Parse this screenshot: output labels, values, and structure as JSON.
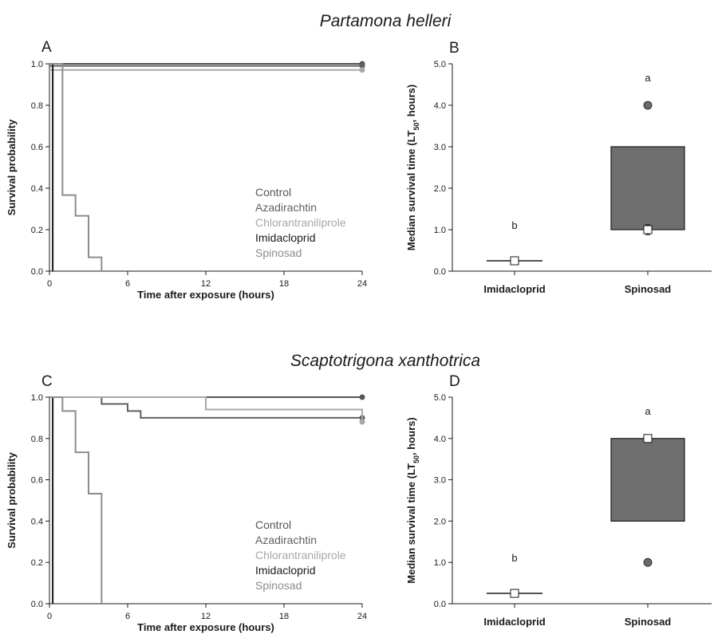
{
  "figure": {
    "colors": {
      "axis": "#1a1a1a",
      "control": "#555555",
      "azadirachtin": "#606060",
      "chlorantraniliprole": "#a8a8a8",
      "imidacloprid": "#1a1a1a",
      "spinosad": "#8c8c8c",
      "box_fill": "#6e6e6e"
    },
    "species_titles": [
      "Partamona helleri",
      "Scaptotrigona xanthotrica"
    ]
  },
  "chart_data": [
    {
      "panel": "A",
      "type": "line",
      "step": true,
      "title": "Partamona helleri",
      "xlabel": "Time after exposure (hours)",
      "ylabel": "Survival probability",
      "xlim": [
        0,
        24
      ],
      "ylim": [
        0,
        1
      ],
      "xticks": [
        "0",
        "6",
        "12",
        "18",
        "24"
      ],
      "yticks": [
        "0.0",
        "0.2",
        "0.4",
        "0.6",
        "0.8",
        "1.0"
      ],
      "legend": [
        "Control",
        "Azadirachtin",
        "Chlorantraniliprole",
        "Imidacloprid",
        "Spinosad"
      ],
      "legend_position": "right-center",
      "series": [
        {
          "name": "Control",
          "color": "#555555",
          "x": [
            0,
            24
          ],
          "y": [
            1.0,
            1.0
          ],
          "end_marker": true
        },
        {
          "name": "Azadirachtin",
          "color": "#606060",
          "x": [
            0,
            24
          ],
          "y": [
            0.99,
            0.99
          ],
          "end_marker": true
        },
        {
          "name": "Chlorantraniliprole",
          "color": "#a8a8a8",
          "x": [
            0,
            24
          ],
          "y": [
            0.97,
            0.97
          ],
          "end_marker": true
        },
        {
          "name": "Imidacloprid",
          "color": "#1a1a1a",
          "x": [
            0,
            0.25
          ],
          "y": [
            1.0,
            0.0
          ],
          "end_marker": false
        },
        {
          "name": "Spinosad",
          "color": "#8c8c8c",
          "x": [
            0,
            1,
            2,
            3,
            4
          ],
          "y": [
            1.0,
            0.367,
            0.267,
            0.067,
            0.0
          ],
          "end_marker": false
        }
      ]
    },
    {
      "panel": "B",
      "type": "box",
      "xlabel": "",
      "ylabel": "Median survival time (LT50, hours)",
      "ylabel_parts": {
        "pre": "Median survival time (LT",
        "sub": "50",
        "post": ", hours)"
      },
      "ylim": [
        0,
        5
      ],
      "yticks": [
        "0.0",
        "1.0",
        "2.0",
        "3.0",
        "4.0",
        "5.0"
      ],
      "categories": [
        "Imidacloprid",
        "Spinosad"
      ],
      "boxes": [
        {
          "category": "Imidacloprid",
          "q1": 0.25,
          "q3": 0.25,
          "median": 0.25,
          "mean": 0.25,
          "outliers": [],
          "letter": "b"
        },
        {
          "category": "Spinosad",
          "q1": 1.0,
          "q3": 3.0,
          "median": 1.0,
          "mean": 1.0,
          "mean_err": 0.12,
          "outliers": [
            4.0
          ],
          "letter": "a"
        }
      ]
    },
    {
      "panel": "C",
      "type": "line",
      "step": true,
      "title": "Scaptotrigona xanthotrica",
      "xlabel": "Time after exposure (hours)",
      "ylabel": "Survival probability",
      "xlim": [
        0,
        24
      ],
      "ylim": [
        0,
        1
      ],
      "xticks": [
        "0",
        "6",
        "12",
        "18",
        "24"
      ],
      "yticks": [
        "0.0",
        "0.2",
        "0.4",
        "0.6",
        "0.8",
        "1.0"
      ],
      "legend": [
        "Control",
        "Azadirachtin",
        "Chlorantraniliprole",
        "Imidacloprid",
        "Spinosad"
      ],
      "legend_position": "right-center",
      "series": [
        {
          "name": "Control",
          "color": "#555555",
          "x": [
            0,
            24
          ],
          "y": [
            1.0,
            1.0
          ],
          "end_marker": true
        },
        {
          "name": "Azadirachtin",
          "color": "#606060",
          "x": [
            0,
            4,
            6,
            7,
            24
          ],
          "y": [
            1.0,
            0.967,
            0.933,
            0.9,
            0.9
          ],
          "end_marker": true
        },
        {
          "name": "Chlorantraniliprole",
          "color": "#a8a8a8",
          "x": [
            0,
            12,
            24
          ],
          "y": [
            1.0,
            0.94,
            0.88
          ],
          "end_marker": true
        },
        {
          "name": "Imidacloprid",
          "color": "#1a1a1a",
          "x": [
            0,
            0.25
          ],
          "y": [
            1.0,
            0.0
          ],
          "end_marker": false
        },
        {
          "name": "Spinosad",
          "color": "#8c8c8c",
          "x": [
            0,
            1,
            2,
            3,
            4
          ],
          "y": [
            1.0,
            0.933,
            0.733,
            0.533,
            0.0
          ],
          "end_marker": false
        }
      ]
    },
    {
      "panel": "D",
      "type": "box",
      "xlabel": "",
      "ylabel": "Median survival time (LT50, hours)",
      "ylabel_parts": {
        "pre": "Median survival time (LT",
        "sub": "50",
        "post": ", hours)"
      },
      "ylim": [
        0,
        5
      ],
      "yticks": [
        "0.0",
        "1.0",
        "2.0",
        "3.0",
        "4.0",
        "5.0"
      ],
      "categories": [
        "Imidacloprid",
        "Spinosad"
      ],
      "boxes": [
        {
          "category": "Imidacloprid",
          "q1": 0.25,
          "q3": 0.25,
          "median": 0.25,
          "mean": 0.25,
          "outliers": [],
          "letter": "b"
        },
        {
          "category": "Spinosad",
          "q1": 2.0,
          "q3": 4.0,
          "median": 4.0,
          "mean": 4.0,
          "outliers": [
            1.0
          ],
          "letter": "a"
        }
      ]
    }
  ]
}
